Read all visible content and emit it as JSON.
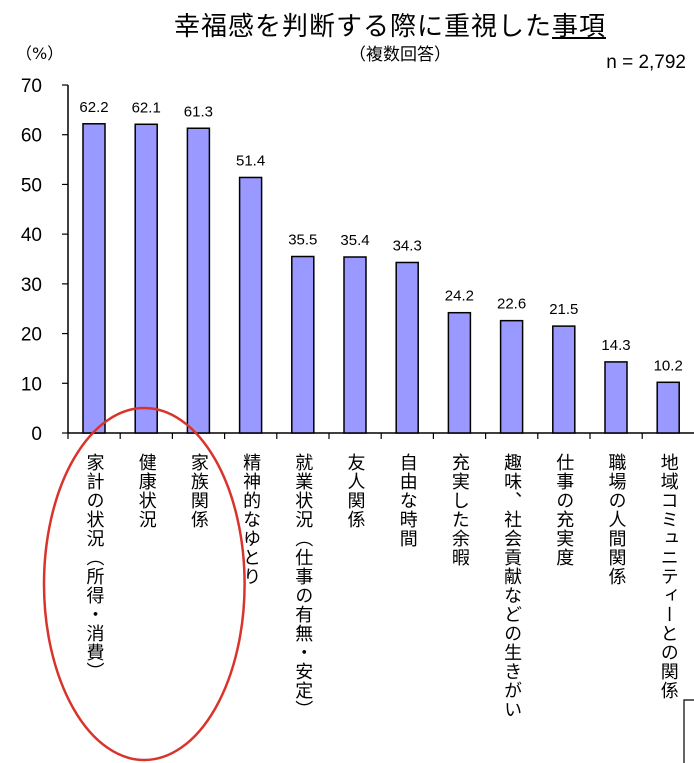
{
  "chart_data": {
    "type": "bar",
    "title_plain": "幸福感を判断する際に重視した",
    "title_underlined": "事項",
    "subtitle": "（複数回答）",
    "ylabel": "（%）",
    "sample_size": "n = 2,792",
    "ylim": [
      0,
      70
    ],
    "yticks": [
      0,
      10,
      20,
      30,
      40,
      50,
      60,
      70
    ],
    "grid": false,
    "categories": [
      "家計の状況（所得・消費）",
      "健康状況",
      "家族関係",
      "精神的なゆとり",
      "就業状況（仕事の有無・安定）",
      "友人関係",
      "自由な時間",
      "充実した余暇",
      "趣味、社会貢献などの生きがい",
      "仕事の充実度",
      "職場の人間関係",
      "地域コミュニティーとの関係"
    ],
    "values": [
      62.2,
      62.1,
      61.3,
      51.4,
      35.5,
      35.4,
      34.3,
      24.2,
      22.6,
      21.5,
      14.3,
      10.2
    ],
    "value_labels": [
      "62.2",
      "62.1",
      "61.3",
      "51.4",
      "35.5",
      "35.4",
      "34.3",
      "24.2",
      "22.6",
      "21.5",
      "14.3",
      "10.2"
    ],
    "bar_color": "#9999ff",
    "bar_edge_color": "#000000",
    "highlight": {
      "shape": "ellipse",
      "color": "#d9342b",
      "category_indices": [
        0,
        1,
        2
      ]
    }
  }
}
